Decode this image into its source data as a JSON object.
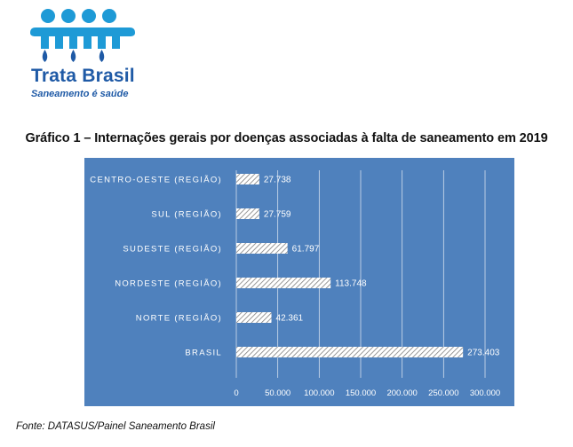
{
  "logo": {
    "brand": "Trata Brasil",
    "tagline": "Saneamento é saúde"
  },
  "colors": {
    "plot_background": "#4f81bd",
    "bar_fill": "#ffffff",
    "bar_hatch": "#7f7f7f",
    "gridline": "#ffffff",
    "logo_blue": "#1f5aa6",
    "logo_light_blue": "#1e9ad6"
  },
  "chart_data": {
    "type": "bar",
    "orientation": "horizontal",
    "title": "Gráfico 1 – Internações gerais por doenças associadas à falta de saneamento em 2019",
    "categories": [
      "CENTRO-OESTE (REGIÃO)",
      "SUL (REGIÃO)",
      "SUDESTE (REGIÃO)",
      "NORDESTE (REGIÃO)",
      "NORTE (REGIÃO)",
      "BRASIL"
    ],
    "values": [
      27738,
      27759,
      61797,
      113748,
      42361,
      273403
    ],
    "data_labels": [
      "27.738",
      "27.759",
      "61.797",
      "113.748",
      "42.361",
      "273.403"
    ],
    "xlim": [
      0,
      300000
    ],
    "xticks": [
      0,
      50000,
      100000,
      150000,
      200000,
      250000,
      300000
    ],
    "xtick_labels": [
      "0",
      "50.000",
      "100.000",
      "150.000",
      "200.000",
      "250.000",
      "300.000"
    ],
    "grid": true,
    "legend": false,
    "bar_pattern": "diagonal-hatch"
  },
  "footer": {
    "source": "Fonte: DATASUS/Painel Saneamento Brasil"
  }
}
